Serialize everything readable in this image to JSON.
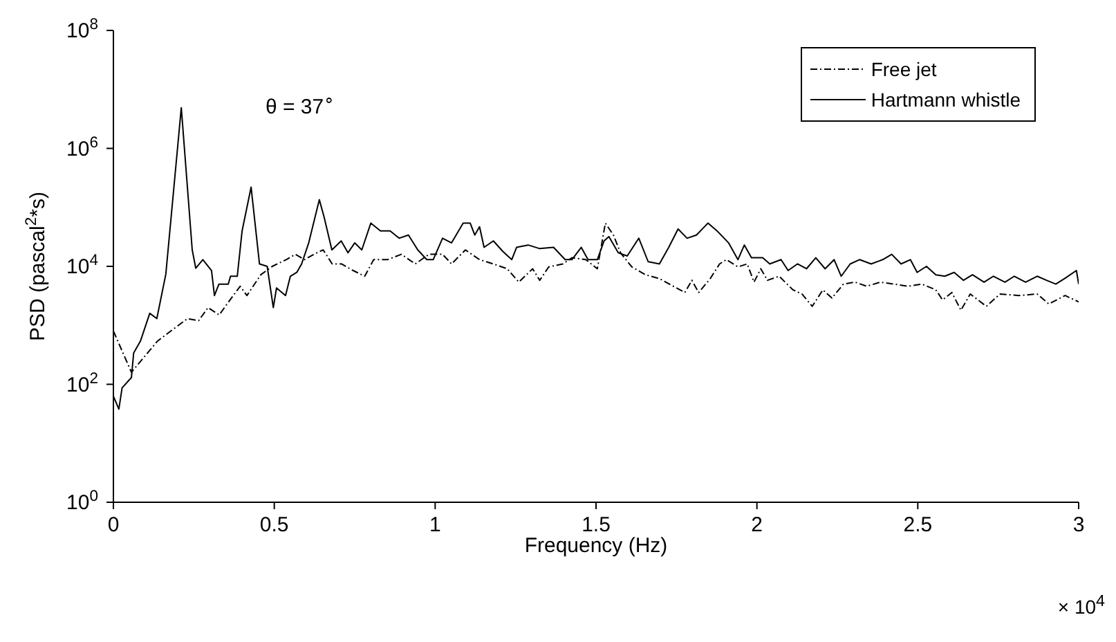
{
  "chart_data": {
    "type": "line",
    "xlabel": "Frequency (Hz)",
    "ylabel": "PSD (pascal$^{2}$*s)",
    "annotations": [
      "θ = 37$^{∘}$",
      "× 10$^{4}$"
    ],
    "xlim": [
      0,
      3
    ],
    "xticks": [
      0,
      0.5,
      1,
      1.5,
      2,
      2.5,
      3
    ],
    "ylim": [
      1,
      100000000
    ],
    "yticks": [
      {
        "value": 1,
        "label": "10$^{0}$"
      },
      {
        "value": 100,
        "label": "10$^{2}$"
      },
      {
        "value": 10000,
        "label": "10$^{4}$"
      },
      {
        "value": 1000000,
        "label": "10$^{6}$"
      },
      {
        "value": 100000000,
        "label": "10$^{8}$"
      }
    ],
    "log": "y",
    "legend": "top right",
    "marker": "none",
    "series": [
      {
        "name": "Free jet",
        "color": "#000000",
        "line_style": "dashed",
        "x": [
          0,
          0.056,
          0.137,
          0.23,
          0.265,
          0.294,
          0.329,
          0.358,
          0.394,
          0.415,
          0.458,
          0.494,
          0.537,
          0.566,
          0.594,
          0.623,
          0.652,
          0.68,
          0.709,
          0.745,
          0.781,
          0.809,
          0.852,
          0.895,
          0.938,
          0.981,
          1.023,
          1.051,
          1.094,
          1.138,
          1.181,
          1.224,
          1.26,
          1.303,
          1.325,
          1.353,
          1.397,
          1.425,
          1.468,
          1.504,
          1.529,
          1.554,
          1.576,
          1.611,
          1.654,
          1.697,
          1.74,
          1.776,
          1.798,
          1.819,
          1.855,
          1.884,
          1.905,
          1.941,
          1.97,
          1.991,
          2.012,
          2.033,
          2.069,
          2.112,
          2.14,
          2.172,
          2.205,
          2.233,
          2.269,
          2.305,
          2.341,
          2.384,
          2.427,
          2.47,
          2.513,
          2.556,
          2.577,
          2.606,
          2.634,
          2.663,
          2.713,
          2.756,
          2.814,
          2.871,
          2.907,
          2.958,
          3
        ],
        "values": [
          800,
          160,
          540,
          1300,
          1200,
          2000,
          1500,
          2500,
          4600,
          3200,
          7200,
          10000,
          13000,
          16000,
          13000,
          16000,
          19000,
          11000,
          11000,
          8500,
          6800,
          13000,
          13000,
          16000,
          11000,
          16000,
          16000,
          11000,
          19000,
          13000,
          11000,
          9100,
          5400,
          9100,
          5800,
          9800,
          11000,
          14000,
          13000,
          9100,
          54000,
          34000,
          17000,
          9800,
          7200,
          6200,
          4600,
          3600,
          5800,
          3600,
          6200,
          11000,
          13000,
          9800,
          11000,
          5400,
          9100,
          5800,
          6800,
          4000,
          3400,
          2100,
          4000,
          2900,
          5000,
          5400,
          4600,
          5400,
          5000,
          4600,
          5000,
          4000,
          2700,
          3600,
          1800,
          3400,
          2100,
          3400,
          3200,
          3400,
          2300,
          3200,
          2500
        ]
      },
      {
        "name": "Hartmann whistle",
        "color": "#000000",
        "line_style": "solid",
        "x": [
          0,
          0.017,
          0.027,
          0.056,
          0.063,
          0.084,
          0.113,
          0.135,
          0.163,
          0.211,
          0.245,
          0.256,
          0.278,
          0.305,
          0.314,
          0.328,
          0.357,
          0.364,
          0.385,
          0.4,
          0.428,
          0.454,
          0.478,
          0.497,
          0.507,
          0.535,
          0.55,
          0.57,
          0.585,
          0.607,
          0.64,
          0.655,
          0.679,
          0.708,
          0.729,
          0.75,
          0.772,
          0.8,
          0.83,
          0.86,
          0.888,
          0.917,
          0.946,
          0.974,
          0.994,
          1.023,
          1.051,
          1.087,
          1.109,
          1.123,
          1.138,
          1.152,
          1.181,
          1.21,
          1.238,
          1.253,
          1.289,
          1.325,
          1.368,
          1.404,
          1.425,
          1.454,
          1.475,
          1.504,
          1.525,
          1.54,
          1.569,
          1.597,
          1.633,
          1.662,
          1.697,
          1.726,
          1.755,
          1.783,
          1.812,
          1.848,
          1.876,
          1.912,
          1.941,
          1.961,
          1.983,
          2.018,
          2.04,
          2.075,
          2.097,
          2.126,
          2.154,
          2.183,
          2.212,
          2.24,
          2.262,
          2.29,
          2.319,
          2.355,
          2.391,
          2.419,
          2.448,
          2.477,
          2.498,
          2.527,
          2.556,
          2.584,
          2.613,
          2.642,
          2.67,
          2.706,
          2.735,
          2.771,
          2.8,
          2.835,
          2.871,
          2.9,
          2.929,
          2.958,
          2.993,
          3
        ],
        "values": [
          63,
          38,
          87,
          130,
          340,
          540,
          1600,
          1300,
          7400,
          4900000,
          19000,
          9300,
          13000,
          8500,
          3200,
          5000,
          5000,
          6800,
          6800,
          40000,
          220000,
          11000,
          10000,
          2000,
          4300,
          3200,
          6800,
          7900,
          11000,
          25000,
          135000,
          68000,
          19000,
          27000,
          17000,
          25000,
          19000,
          54000,
          40000,
          40000,
          30000,
          34000,
          19000,
          13000,
          13000,
          30000,
          25000,
          54000,
          54000,
          34000,
          47000,
          21000,
          27000,
          18000,
          13000,
          21000,
          23000,
          20000,
          21000,
          13000,
          13000,
          21000,
          13000,
          13000,
          27000,
          32000,
          17000,
          15000,
          30000,
          12000,
          11000,
          21000,
          43000,
          30000,
          34000,
          54000,
          40000,
          25000,
          13000,
          23000,
          14000,
          14000,
          11000,
          13000,
          8500,
          11000,
          9100,
          14000,
          9100,
          13000,
          6800,
          11000,
          13000,
          11000,
          13000,
          16000,
          11000,
          13000,
          7900,
          10000,
          7200,
          6800,
          7900,
          5800,
          7200,
          5400,
          6800,
          5400,
          6800,
          5400,
          6800,
          5800,
          5000,
          6300,
          8500,
          5000
        ]
      }
    ]
  }
}
